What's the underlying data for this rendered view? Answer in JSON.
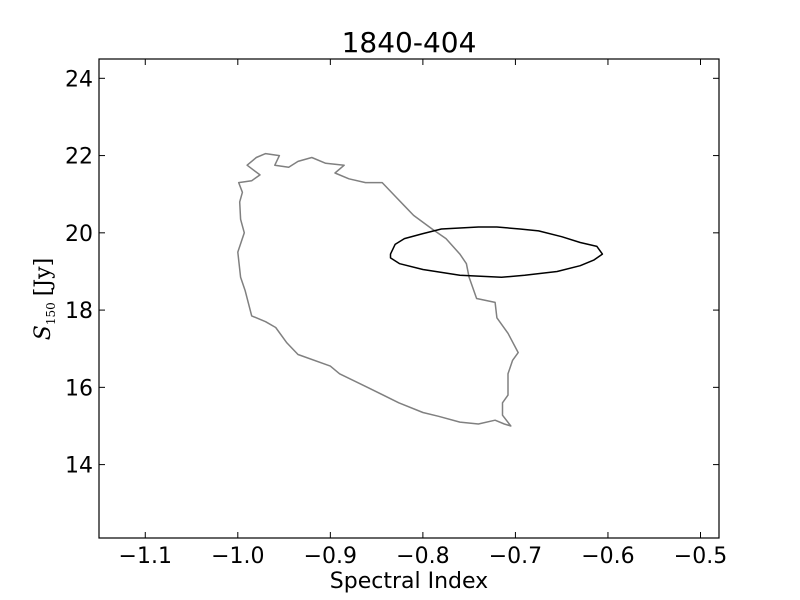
{
  "chart_data": {
    "type": "line",
    "title": "1840-404",
    "xlabel": "Spectral Index",
    "ylabel_symbol": "S",
    "ylabel_sub": "150",
    "ylabel_unit": "[Jy]",
    "xlim": [
      -1.15,
      -0.48
    ],
    "ylim": [
      12.1,
      24.5
    ],
    "xticks": [
      -1.1,
      -1.0,
      -0.9,
      -0.8,
      -0.7,
      -0.6,
      -0.5
    ],
    "xtick_labels": [
      "−1.1",
      "−1.0",
      "−0.9",
      "−0.8",
      "−0.7",
      "−0.6",
      "−0.5"
    ],
    "yticks": [
      14,
      16,
      18,
      20,
      22,
      24
    ],
    "ytick_labels": [
      "14",
      "16",
      "18",
      "20",
      "22",
      "24"
    ],
    "grid": false,
    "series": [
      {
        "color": "#808080",
        "closed": true,
        "x": [
          -0.97,
          -0.955,
          -0.96,
          -0.945,
          -0.935,
          -0.92,
          -0.905,
          -0.885,
          -0.895,
          -0.88,
          -0.862,
          -0.844,
          -0.83,
          -0.82,
          -0.81,
          -0.79,
          -0.775,
          -0.76,
          -0.753,
          -0.75,
          -0.742,
          -0.722,
          -0.72,
          -0.708,
          -0.697,
          -0.703,
          -0.708,
          -0.708,
          -0.714,
          -0.714,
          -0.705,
          -0.712,
          -0.722,
          -0.74,
          -0.76,
          -0.783,
          -0.8,
          -0.826,
          -0.86,
          -0.89,
          -0.9,
          -0.935,
          -0.947,
          -0.959,
          -0.97,
          -0.985,
          -0.992,
          -0.997,
          -1.0,
          -0.993,
          -0.997,
          -0.998,
          -0.995,
          -0.999,
          -0.985,
          -0.976,
          -0.99,
          -0.98
        ],
        "y": [
          22.05,
          22.0,
          21.75,
          21.7,
          21.85,
          21.95,
          21.8,
          21.75,
          21.55,
          21.4,
          21.3,
          21.3,
          20.95,
          20.7,
          20.45,
          20.1,
          19.85,
          19.45,
          19.2,
          18.85,
          18.3,
          18.2,
          17.8,
          17.4,
          16.9,
          16.7,
          16.35,
          15.8,
          15.6,
          15.28,
          15.0,
          15.05,
          15.15,
          15.05,
          15.1,
          15.25,
          15.35,
          15.6,
          16.0,
          16.35,
          16.55,
          16.85,
          17.15,
          17.55,
          17.7,
          17.85,
          18.5,
          18.85,
          19.5,
          20.0,
          20.35,
          20.8,
          21.05,
          21.3,
          21.35,
          21.5,
          21.75,
          21.95
        ]
      },
      {
        "color": "#000000",
        "closed": true,
        "x": [
          -0.835,
          -0.83,
          -0.82,
          -0.8,
          -0.78,
          -0.74,
          -0.72,
          -0.695,
          -0.675,
          -0.65,
          -0.63,
          -0.612,
          -0.606,
          -0.615,
          -0.63,
          -0.655,
          -0.69,
          -0.715,
          -0.76,
          -0.8,
          -0.825,
          -0.835
        ],
        "y": [
          19.45,
          19.7,
          19.85,
          19.98,
          20.1,
          20.15,
          20.15,
          20.1,
          20.05,
          19.9,
          19.75,
          19.65,
          19.45,
          19.3,
          19.15,
          19.0,
          18.9,
          18.85,
          18.9,
          19.05,
          19.2,
          19.35
        ]
      }
    ]
  }
}
